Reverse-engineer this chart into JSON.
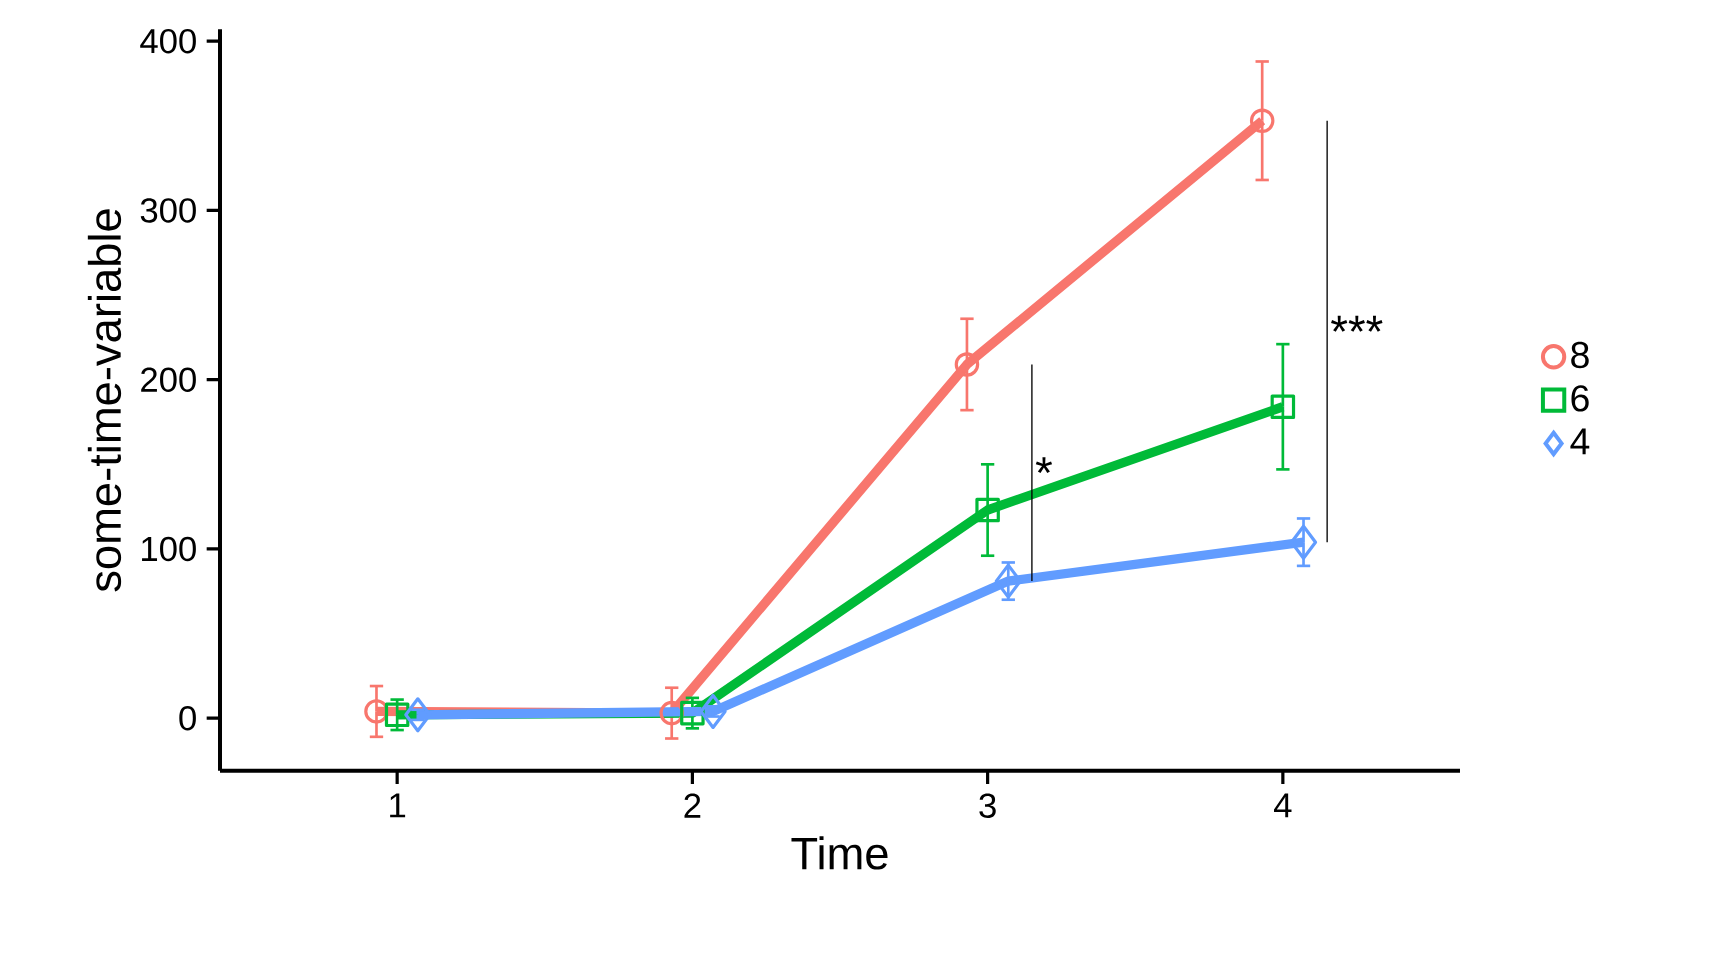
{
  "chart_data": {
    "type": "line",
    "xlabel": "Time",
    "ylabel": "some-time-variable",
    "xlim": [
      0.4,
      4.6
    ],
    "ylim": [
      -31,
      407
    ],
    "xticks": [
      1,
      2,
      3,
      4
    ],
    "yticks": [
      0,
      100,
      200,
      300,
      400
    ],
    "legend": "right",
    "grid": false,
    "series": [
      {
        "name": "8",
        "color": "#f8766d",
        "marker": "circle",
        "x": [
          0.93,
          1.93,
          2.93,
          3.93
        ],
        "values": [
          4,
          3,
          209,
          353
        ],
        "errors": [
          15,
          15,
          27,
          35
        ]
      },
      {
        "name": "6",
        "color": "#00ba38",
        "marker": "square",
        "x": [
          1,
          2,
          3,
          4
        ],
        "values": [
          2,
          3,
          123,
          184
        ],
        "errors": [
          9,
          9,
          27,
          37
        ]
      },
      {
        "name": "4",
        "color": "#619cff",
        "marker": "diamond",
        "x": [
          1.07,
          2.07,
          3.07,
          4.07
        ],
        "values": [
          2,
          4,
          81,
          104
        ],
        "errors": [
          3,
          3,
          11,
          14
        ]
      }
    ],
    "annotations": [
      "*",
      "***"
    ]
  }
}
